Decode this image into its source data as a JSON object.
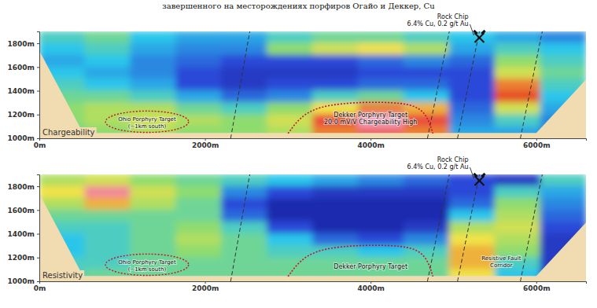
{
  "caption": "завершенного на месторождениях порфиров Огайо и Деккер, Cu",
  "chart_data": [
    {
      "type": "heatmap",
      "title": "Chargeability",
      "x": [
        275,
        825,
        1375,
        1925,
        2475,
        3025,
        3575,
        4125,
        4675,
        5225,
        5775,
        6325
      ],
      "y": [
        1850,
        1750,
        1650,
        1550,
        1450,
        1350,
        1250,
        1150,
        1050
      ],
      "z": [
        [
          8,
          9,
          7,
          6,
          6,
          8,
          9,
          9,
          8,
          7,
          6,
          5
        ],
        [
          7,
          8,
          6,
          5,
          5,
          10,
          12,
          13,
          11,
          6,
          8,
          7
        ],
        [
          6,
          7,
          5,
          4,
          3,
          3,
          3,
          4,
          5,
          4,
          10,
          8
        ],
        [
          7,
          6,
          5,
          3,
          2,
          2,
          2,
          3,
          3,
          3,
          12,
          9
        ],
        [
          8,
          7,
          6,
          3,
          2,
          3,
          3,
          4,
          4,
          3,
          15,
          8
        ],
        [
          9,
          9,
          8,
          6,
          4,
          5,
          8,
          9,
          7,
          3,
          16,
          7
        ],
        [
          10,
          11,
          11,
          9,
          8,
          10,
          13,
          15,
          14,
          4,
          12,
          6
        ],
        [
          10,
          11,
          12,
          11,
          10,
          12,
          17,
          20,
          17,
          5,
          8,
          5
        ],
        [
          9,
          10,
          11,
          10,
          10,
          11,
          15,
          18,
          15,
          6,
          6,
          5
        ]
      ],
      "zlim": [
        0,
        20
      ],
      "xlim": [
        0,
        6600
      ],
      "xticks": [
        {
          "value": 0,
          "label": "0m"
        },
        {
          "value": 2000,
          "label": "2000m"
        },
        {
          "value": 4000,
          "label": "4000m"
        },
        {
          "value": 6000,
          "label": "6000m"
        }
      ],
      "ylim": [
        1000,
        1900
      ],
      "yticks": [
        {
          "value": 1000,
          "label": "1000m"
        },
        {
          "value": 1200,
          "label": "1200m"
        },
        {
          "value": 1400,
          "label": "1400m"
        },
        {
          "value": 1600,
          "label": "1600m"
        },
        {
          "value": 1800,
          "label": "1800m"
        }
      ],
      "annotations": [
        {
          "text": [
            "Ohio Porphyry Target",
            "(~1km south)"
          ]
        },
        {
          "text": [
            "Dekker Porphyry Target",
            "20.0 mV/V Chargeability High"
          ]
        },
        {
          "text": [
            "Rock Chip",
            "6.4% Cu, 0.2 g/t Au"
          ]
        }
      ]
    },
    {
      "type": "heatmap",
      "title": "Resistivity",
      "x": [
        275,
        825,
        1375,
        1925,
        2475,
        3025,
        3575,
        4125,
        4675,
        5225,
        5775,
        6325
      ],
      "y": [
        1850,
        1750,
        1650,
        1550,
        1450,
        1350,
        1250,
        1150,
        1050
      ],
      "z": [
        [
          55,
          60,
          50,
          45,
          40,
          35,
          30,
          25,
          20,
          15,
          10,
          40
        ],
        [
          65,
          95,
          60,
          50,
          25,
          15,
          10,
          10,
          10,
          15,
          40,
          30
        ],
        [
          55,
          70,
          55,
          45,
          15,
          5,
          5,
          5,
          5,
          20,
          50,
          25
        ],
        [
          45,
          45,
          45,
          45,
          20,
          5,
          5,
          5,
          5,
          35,
          55,
          20
        ],
        [
          40,
          40,
          45,
          50,
          40,
          15,
          5,
          5,
          10,
          55,
          60,
          15
        ],
        [
          35,
          40,
          45,
          55,
          45,
          35,
          20,
          15,
          25,
          65,
          55,
          10
        ],
        [
          35,
          40,
          45,
          50,
          45,
          40,
          40,
          35,
          40,
          70,
          50,
          10
        ],
        [
          40,
          40,
          45,
          45,
          45,
          45,
          45,
          45,
          45,
          70,
          40,
          10
        ],
        [
          40,
          45,
          45,
          45,
          45,
          45,
          45,
          45,
          45,
          65,
          35,
          10
        ]
      ],
      "zlim": [
        0,
        100
      ],
      "xlim": [
        0,
        6600
      ],
      "xticks": [
        {
          "value": 0,
          "label": "0m"
        },
        {
          "value": 2000,
          "label": "2000m"
        },
        {
          "value": 4000,
          "label": "4000m"
        },
        {
          "value": 6000,
          "label": "6000m"
        }
      ],
      "ylim": [
        1000,
        1900
      ],
      "yticks": [
        {
          "value": 1000,
          "label": "1000m"
        },
        {
          "value": 1200,
          "label": "1200m"
        },
        {
          "value": 1400,
          "label": "1400m"
        },
        {
          "value": 1600,
          "label": "1600m"
        },
        {
          "value": 1800,
          "label": "1800m"
        }
      ],
      "annotations": [
        {
          "text": [
            "Ohio Porphyry Target",
            "(~1km south)"
          ]
        },
        {
          "text": [
            "Dekker Porphyry Target"
          ]
        },
        {
          "text": [
            "Rock Chip",
            "6.4% Cu, 0.2 g/t Au"
          ]
        },
        {
          "text": [
            "Resistive Fault",
            "Corridor"
          ]
        }
      ]
    }
  ]
}
